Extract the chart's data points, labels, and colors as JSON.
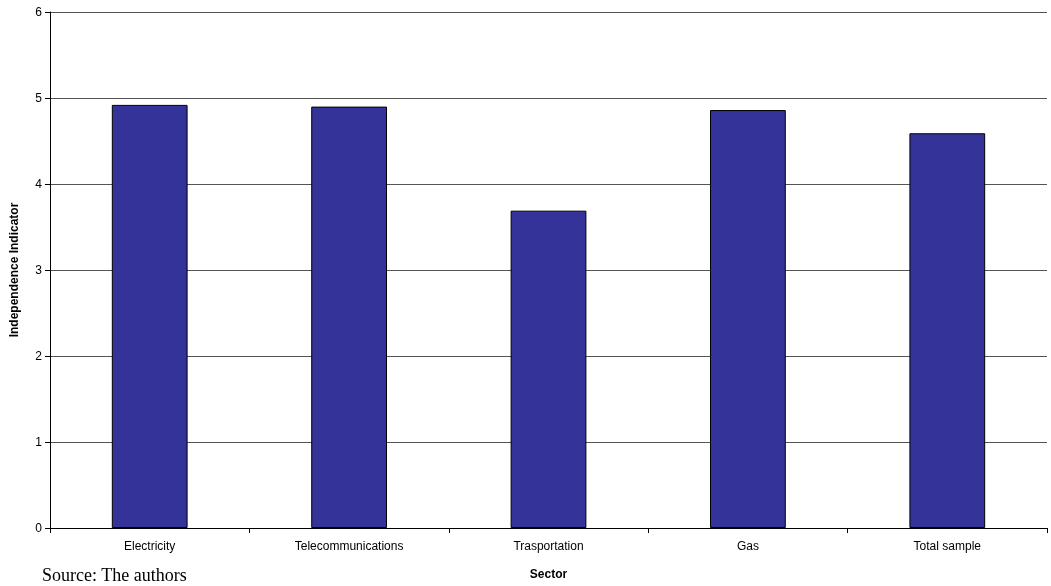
{
  "chart_data": {
    "type": "bar",
    "categories": [
      "Electricity",
      "Telecommunications",
      "Trasportation",
      "Gas",
      "Total sample"
    ],
    "values": [
      4.92,
      4.9,
      3.69,
      4.86,
      4.59
    ],
    "color": "#333399",
    "xlabel": "Sector",
    "ylabel": "Independence Indicator",
    "ylim": [
      0,
      6
    ],
    "yticks": [
      0,
      1,
      2,
      3,
      4,
      5,
      6
    ],
    "grid": "y",
    "annotations": [
      "Source: The authors"
    ]
  }
}
